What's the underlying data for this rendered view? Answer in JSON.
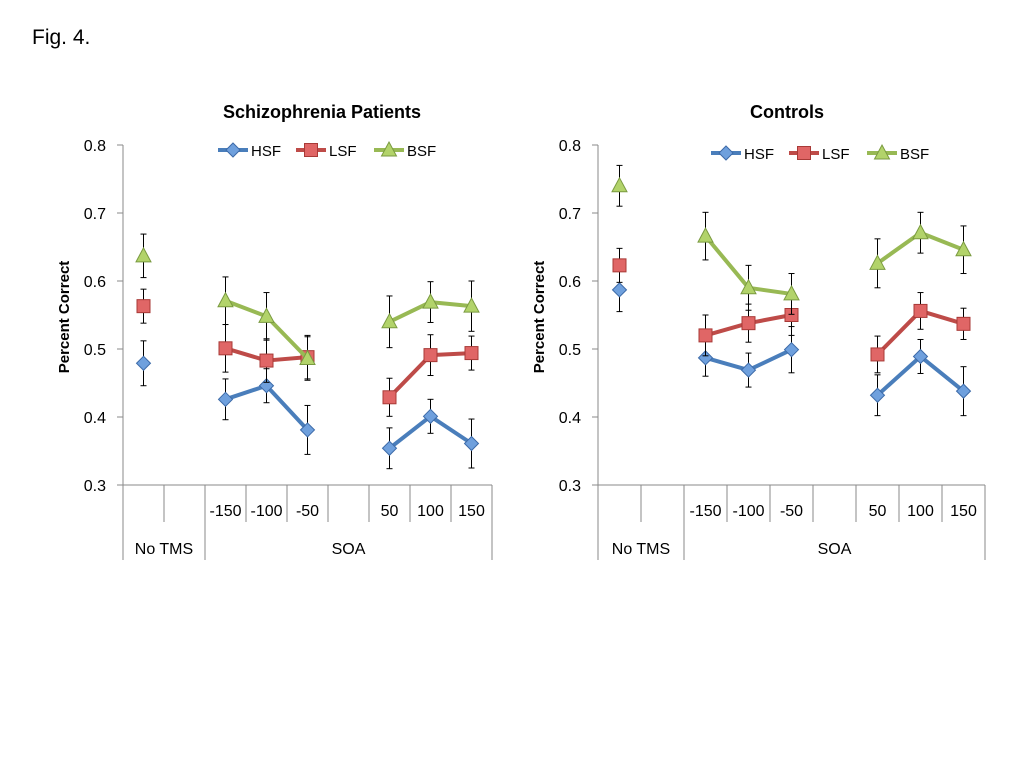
{
  "figure_label": "Fig. 4.",
  "chart_data": [
    {
      "type": "line",
      "title": "Schizophrenia Patients",
      "ylabel": "Percent Correct",
      "xlabel": "",
      "ylim": [
        0.3,
        0.8
      ],
      "yticks": [
        "0.8",
        "0.7",
        "0.6",
        "0.5",
        "0.4",
        "0.3"
      ],
      "categories": [
        "No TMS",
        "-150",
        "-100",
        "-50",
        "50",
        "100",
        "150"
      ],
      "groups": [
        "No TMS",
        "SOA"
      ],
      "legend_position": "top",
      "grid": false,
      "series": [
        {
          "name": "HSF",
          "color": "#4a7ebb",
          "marker": "diamond",
          "values": [
            0.479,
            0.426,
            0.446,
            0.381,
            0.354,
            0.401,
            0.361
          ],
          "errors": [
            0.033,
            0.03,
            0.025,
            0.036,
            0.03,
            0.025,
            0.036
          ]
        },
        {
          "name": "LSF",
          "color": "#be4b48",
          "marker": "square",
          "values": [
            0.563,
            0.501,
            0.483,
            0.488,
            0.429,
            0.491,
            0.494
          ],
          "errors": [
            0.025,
            0.035,
            0.032,
            0.032,
            0.028,
            0.03,
            0.025
          ]
        },
        {
          "name": "BSF",
          "color": "#98b954",
          "marker": "triangle",
          "values": [
            0.637,
            0.571,
            0.548,
            0.486,
            0.54,
            0.569,
            0.563
          ],
          "errors": [
            0.032,
            0.035,
            0.035,
            0.032,
            0.038,
            0.03,
            0.037
          ]
        }
      ]
    },
    {
      "type": "line",
      "title": "Controls",
      "ylabel": "Percent Correct",
      "xlabel": "",
      "ylim": [
        0.3,
        0.8
      ],
      "yticks": [
        "0.8",
        "0.7",
        "0.6",
        "0.5",
        "0.4",
        "0.3"
      ],
      "categories": [
        "No TMS",
        "-150",
        "-100",
        "-50",
        "50",
        "100",
        "150"
      ],
      "groups": [
        "No TMS",
        "SOA"
      ],
      "legend_position": "top",
      "grid": false,
      "series": [
        {
          "name": "HSF",
          "color": "#4a7ebb",
          "marker": "diamond",
          "values": [
            0.587,
            0.487,
            0.469,
            0.499,
            0.432,
            0.489,
            0.438
          ],
          "errors": [
            0.032,
            0.027,
            0.025,
            0.034,
            0.03,
            0.025,
            0.036
          ]
        },
        {
          "name": "LSF",
          "color": "#be4b48",
          "marker": "square",
          "values": [
            0.623,
            0.52,
            0.538,
            0.55,
            0.492,
            0.556,
            0.537
          ],
          "errors": [
            0.025,
            0.03,
            0.028,
            0.03,
            0.027,
            0.027,
            0.023
          ]
        },
        {
          "name": "BSF",
          "color": "#98b954",
          "marker": "triangle",
          "values": [
            0.74,
            0.666,
            0.59,
            0.581,
            0.626,
            0.671,
            0.646
          ],
          "errors": [
            0.03,
            0.035,
            0.033,
            0.03,
            0.036,
            0.03,
            0.035
          ]
        }
      ]
    }
  ]
}
